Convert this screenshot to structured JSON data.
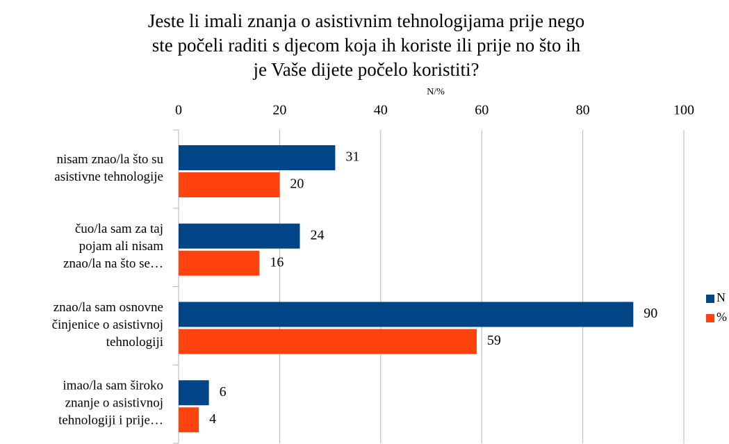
{
  "chart_data": {
    "type": "barh",
    "title": "Jeste li imali znanja o asistivnim tehnologijama prije nego\nste počeli raditi s djecom koja ih koriste ili prije no što ih\nje Vaše dijete počelo koristiti?",
    "x_label": "N/%",
    "categories": [
      "nisam znao/la što su\nasistivne tehnologije",
      "čuo/la sam za taj\npojam ali nisam\nznao/la na što se…",
      "znao/la sam osnovne\nčinjenice o asistivnoj\ntehnologiji",
      "imao/la sam široko\nznanje o asistivnoj\ntehnologiji i prije…"
    ],
    "series": [
      {
        "name": "N",
        "color": "#004586",
        "values": [
          31,
          24,
          90,
          6
        ]
      },
      {
        "name": "%",
        "color": "#ff420e",
        "values": [
          20,
          16,
          59,
          4
        ]
      }
    ],
    "xlim": [
      0,
      100
    ],
    "xticks": [
      0,
      20,
      40,
      60,
      80,
      100
    ],
    "grid": true,
    "legend": "right"
  }
}
